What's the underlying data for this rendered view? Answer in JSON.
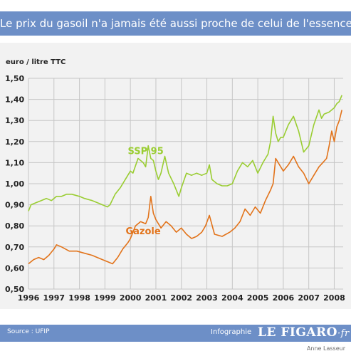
{
  "header": {
    "title": "Le prix du gasoil n'a jamais été aussi proche de celui de l'essence"
  },
  "footer": {
    "source": "Source : UFIP",
    "infographie": "Infographie",
    "logo_main": "LE FIGARO",
    "logo_suffix": "·fr",
    "author": "Anne Lasseur"
  },
  "colors": {
    "ssp95": "#9acd32",
    "gazole": "#e2731a",
    "banner": "#6d8fc7",
    "panel": "#f2f2f2"
  },
  "chart_data": {
    "type": "line",
    "title": "",
    "ylabel": "euro / litre TTC",
    "xlabel": "",
    "xlim": [
      1996,
      2008.35
    ],
    "ylim": [
      0.5,
      1.5
    ],
    "yticks": [
      "1,50",
      "1,40",
      "1,30",
      "1,20",
      "1,10",
      "1,00",
      "0,90",
      "0,80",
      "0,70",
      "0,60",
      "0,50"
    ],
    "xticks": [
      "1996",
      "1997",
      "1998",
      "1999",
      "2000",
      "2001",
      "2002",
      "2003",
      "2004",
      "2005",
      "2006",
      "2007",
      "2008"
    ],
    "grid": true,
    "series": [
      {
        "name": "SSP 95",
        "color": "#9acd32",
        "x": [
          1996.0,
          1996.1,
          1996.3,
          1996.5,
          1996.7,
          1996.9,
          1997.1,
          1997.3,
          1997.5,
          1997.7,
          1998.0,
          1998.2,
          1998.5,
          1998.7,
          1998.9,
          1999.1,
          1999.2,
          1999.4,
          1999.6,
          1999.8,
          2000.0,
          2000.1,
          2000.3,
          2000.5,
          2000.6,
          2000.7,
          2000.8,
          2000.9,
          2001.0,
          2001.1,
          2001.2,
          2001.35,
          2001.5,
          2001.7,
          2001.8,
          2001.9,
          2002.0,
          2002.2,
          2002.4,
          2002.6,
          2002.8,
          2003.0,
          2003.1,
          2003.2,
          2003.4,
          2003.6,
          2003.8,
          2004.0,
          2004.2,
          2004.4,
          2004.6,
          2004.8,
          2005.0,
          2005.2,
          2005.4,
          2005.5,
          2005.6,
          2005.7,
          2005.8,
          2005.9,
          2006.0,
          2006.2,
          2006.4,
          2006.6,
          2006.8,
          2007.0,
          2007.2,
          2007.4,
          2007.5,
          2007.6,
          2007.8,
          2008.0,
          2008.1,
          2008.2,
          2008.3
        ],
        "values": [
          0.87,
          0.9,
          0.91,
          0.92,
          0.93,
          0.92,
          0.94,
          0.94,
          0.95,
          0.95,
          0.94,
          0.93,
          0.92,
          0.91,
          0.9,
          0.89,
          0.9,
          0.95,
          0.98,
          1.02,
          1.06,
          1.05,
          1.12,
          1.1,
          1.08,
          1.18,
          1.12,
          1.11,
          1.06,
          1.02,
          1.05,
          1.13,
          1.05,
          1.0,
          0.97,
          0.94,
          0.98,
          1.05,
          1.04,
          1.05,
          1.04,
          1.05,
          1.09,
          1.02,
          1.0,
          0.99,
          0.99,
          1.0,
          1.06,
          1.1,
          1.08,
          1.11,
          1.05,
          1.1,
          1.14,
          1.2,
          1.32,
          1.24,
          1.2,
          1.22,
          1.22,
          1.28,
          1.32,
          1.25,
          1.15,
          1.18,
          1.28,
          1.35,
          1.31,
          1.33,
          1.34,
          1.36,
          1.38,
          1.39,
          1.42
        ]
      },
      {
        "name": "Gazole",
        "color": "#e2731a",
        "x": [
          1996.0,
          1996.2,
          1996.4,
          1996.6,
          1996.8,
          1997.0,
          1997.1,
          1997.3,
          1997.6,
          1997.9,
          1998.2,
          1998.5,
          1998.7,
          1998.9,
          1999.1,
          1999.3,
          1999.5,
          1999.7,
          1999.9,
          2000.0,
          2000.2,
          2000.4,
          2000.6,
          2000.7,
          2000.8,
          2000.9,
          2001.0,
          2001.2,
          2001.4,
          2001.6,
          2001.8,
          2002.0,
          2002.2,
          2002.4,
          2002.6,
          2002.8,
          2002.95,
          2003.1,
          2003.3,
          2003.6,
          2003.9,
          2004.1,
          2004.3,
          2004.5,
          2004.7,
          2004.9,
          2005.1,
          2005.3,
          2005.5,
          2005.6,
          2005.7,
          2005.9,
          2006.0,
          2006.2,
          2006.4,
          2006.6,
          2006.8,
          2007.0,
          2007.2,
          2007.4,
          2007.55,
          2007.7,
          2007.8,
          2007.9,
          2008.0,
          2008.1,
          2008.2,
          2008.3
        ],
        "values": [
          0.62,
          0.64,
          0.65,
          0.64,
          0.66,
          0.69,
          0.71,
          0.7,
          0.68,
          0.68,
          0.67,
          0.66,
          0.65,
          0.64,
          0.63,
          0.62,
          0.65,
          0.69,
          0.72,
          0.74,
          0.8,
          0.82,
          0.81,
          0.84,
          0.94,
          0.86,
          0.83,
          0.79,
          0.82,
          0.8,
          0.77,
          0.79,
          0.76,
          0.74,
          0.75,
          0.77,
          0.8,
          0.85,
          0.76,
          0.75,
          0.77,
          0.79,
          0.82,
          0.88,
          0.85,
          0.89,
          0.86,
          0.92,
          0.97,
          1.0,
          1.12,
          1.08,
          1.06,
          1.09,
          1.13,
          1.08,
          1.05,
          1.0,
          1.04,
          1.08,
          1.1,
          1.12,
          1.18,
          1.25,
          1.2,
          1.27,
          1.3,
          1.35
        ]
      }
    ],
    "annotations": [
      {
        "text": "SSP 95",
        "x": 2000.6,
        "y": 1.14,
        "series": 0
      },
      {
        "text": "Gazole",
        "x": 2000.5,
        "y": 0.76,
        "series": 1
      }
    ]
  }
}
